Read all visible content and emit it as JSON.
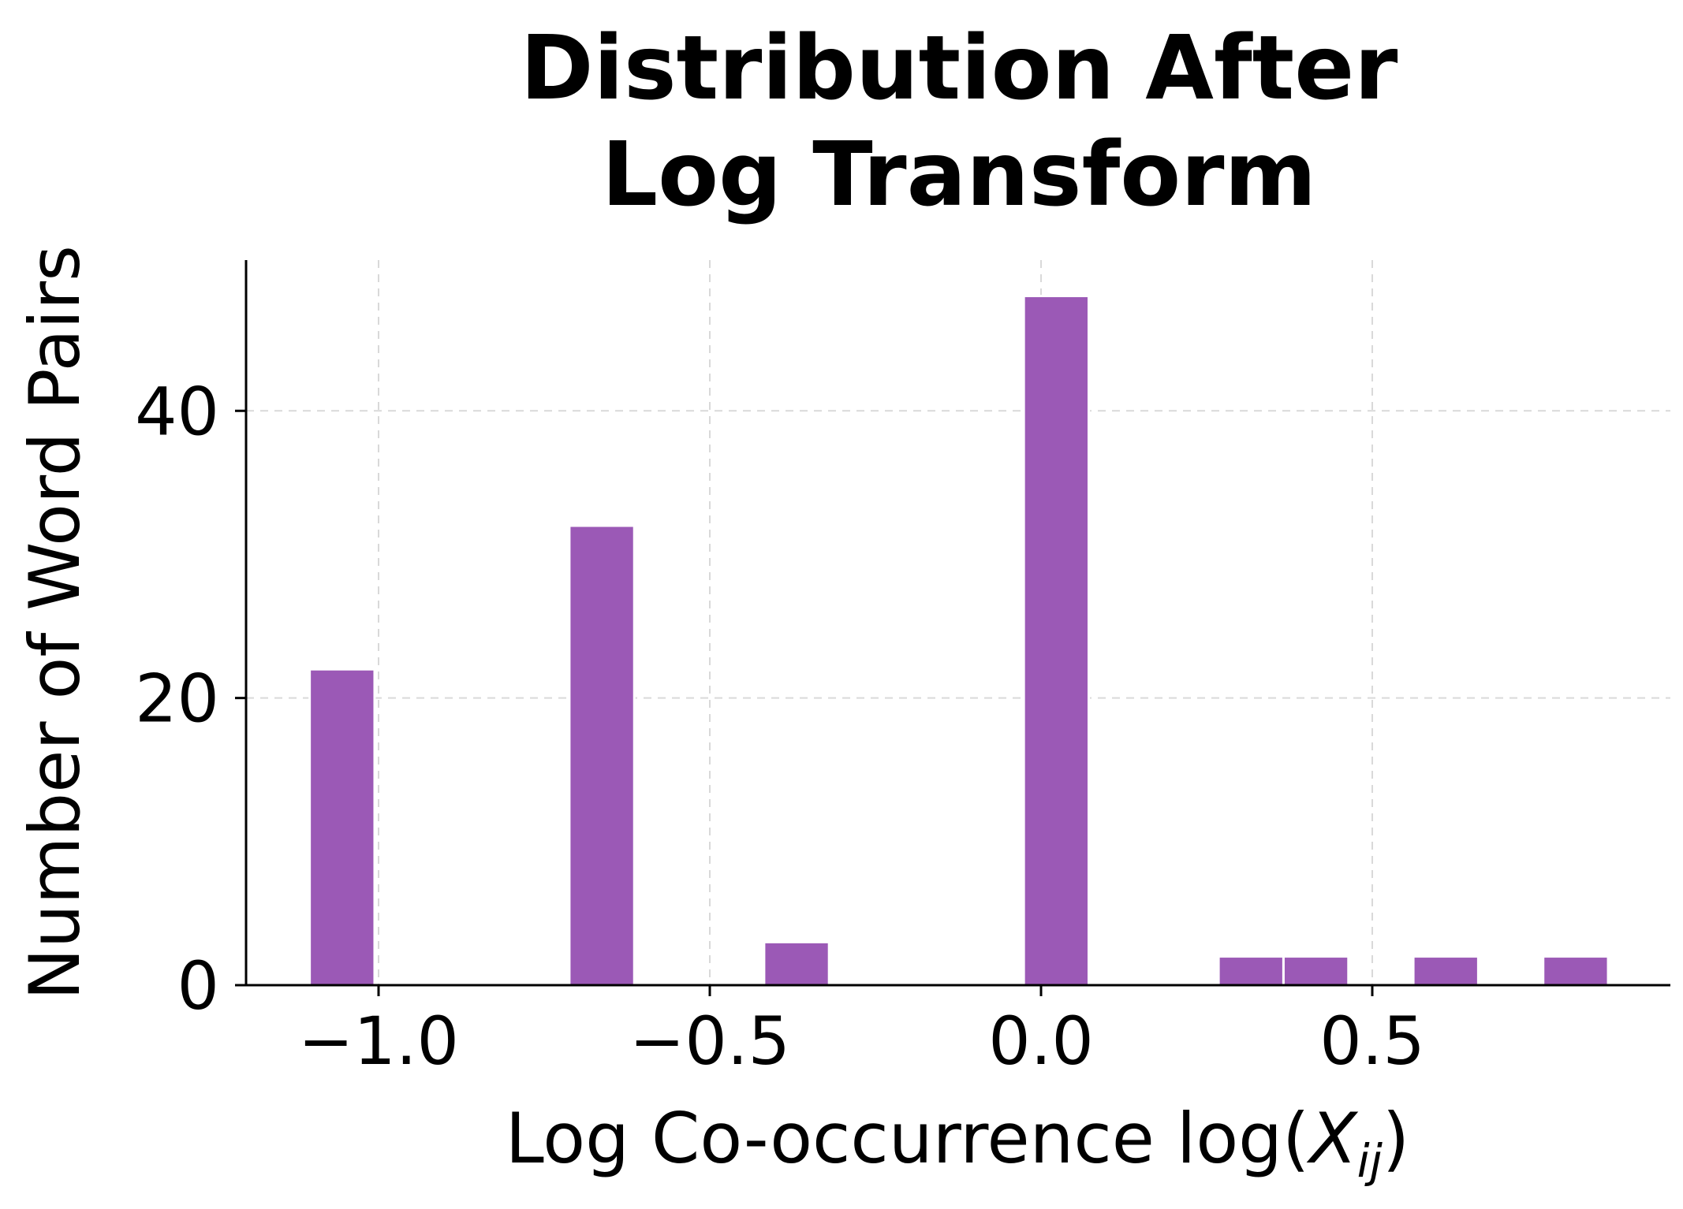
{
  "chart_data": {
    "type": "bar",
    "title_lines": [
      "Distribution After",
      "Log Transform"
    ],
    "xlabel_prefix": "Log Co-occurrence log(",
    "xlabel_var": "X",
    "xlabel_sub": "ij",
    "xlabel_suffix": ")",
    "ylabel": "Number of Word Pairs",
    "bin_width": 0.098,
    "bins": [
      {
        "left": -1.104,
        "count": 22
      },
      {
        "left": -0.712,
        "count": 32
      },
      {
        "left": -0.418,
        "count": 3
      },
      {
        "left": -0.026,
        "count": 48
      },
      {
        "left": 0.268,
        "count": 2
      },
      {
        "left": 0.366,
        "count": 2
      },
      {
        "left": 0.562,
        "count": 2
      },
      {
        "left": 0.758,
        "count": 2
      }
    ],
    "xlim": [
      -1.2,
      0.95
    ],
    "ylim": [
      0,
      50.5
    ],
    "xticks": [
      -1.0,
      -0.5,
      0.0,
      0.5
    ],
    "xtick_labels": [
      "−1.0",
      "−0.5",
      "0.0",
      "0.5"
    ],
    "yticks": [
      0,
      20,
      40
    ],
    "ytick_labels": [
      "0",
      "20",
      "40"
    ],
    "grid": true,
    "bar_color": "#9b59b6",
    "bar_edge_color": "#ffffff"
  }
}
